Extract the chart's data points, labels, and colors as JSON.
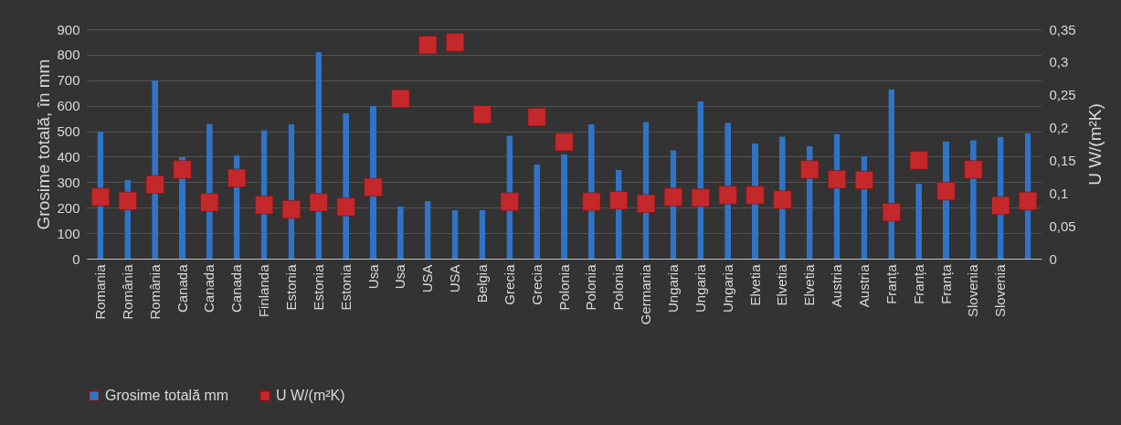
{
  "chart_data": {
    "type": "bar",
    "ylabel": "Grosime totală, în mm",
    "y2label": "U W/(m²K)",
    "categories": [
      "Romania",
      "România",
      "România",
      "Canada",
      "Canada",
      "Canada",
      "Finlanda",
      "Estonia",
      "Estonia",
      "Estonia",
      "Usa",
      "Usa",
      "USA",
      "USA",
      "Belgia",
      "Grecia",
      "Grecia",
      "Polonia",
      "Polonia",
      "Polonia",
      "Germania",
      "Ungaria",
      "Ungaria",
      "Ungaria",
      "Elvetia",
      "Elvetia",
      "Elvetia",
      "Austria",
      "Austria",
      "Franța",
      "Franța",
      "Franța",
      "Slovenia",
      "Slovenia",
      null
    ],
    "series": [
      {
        "name": "Grosime totală mm",
        "color": "#2f74c6",
        "values": [
          500,
          310,
          700,
          400,
          530,
          405,
          505,
          528,
          810,
          570,
          600,
          205,
          226,
          190,
          190,
          483,
          369,
          411,
          527,
          348,
          537,
          426,
          618,
          533,
          453,
          480,
          441,
          489,
          403,
          664,
          295,
          461,
          465,
          479,
          492
        ]
      },
      {
        "name": "U W/(m²K)",
        "type": "scatter",
        "axis": "y2",
        "color": "#c4282b",
        "marker": "square",
        "values": [
          0.094,
          0.088,
          0.113,
          0.136,
          0.086,
          0.123,
          0.082,
          0.075,
          0.086,
          0.079,
          0.109,
          0.244,
          0.326,
          0.33,
          0.22,
          0.087,
          0.216,
          0.178,
          0.087,
          0.089,
          0.084,
          0.094,
          0.093,
          0.097,
          0.097,
          0.09,
          0.136,
          0.121,
          0.12,
          0.071,
          0.15,
          0.103,
          0.136,
          0.081,
          0.088
        ]
      }
    ],
    "ylim": [
      0,
      900
    ],
    "yticks": [
      0,
      100,
      200,
      300,
      400,
      500,
      600,
      700,
      800,
      900
    ],
    "y2lim": [
      0,
      0.35
    ],
    "y2ticks": [
      0,
      {
        "value": 0.05,
        "label": "0,05"
      },
      {
        "value": 0.1,
        "label": "0,1"
      },
      {
        "value": 0.15,
        "label": "0,15"
      },
      {
        "value": 0.2,
        "label": "0,2"
      },
      {
        "value": 0.25,
        "label": "0,25"
      },
      {
        "value": 0.3,
        "label": "0,3"
      },
      {
        "value": 0.35,
        "label": "0,35"
      }
    ],
    "grid": "y",
    "legend": "bottom"
  }
}
